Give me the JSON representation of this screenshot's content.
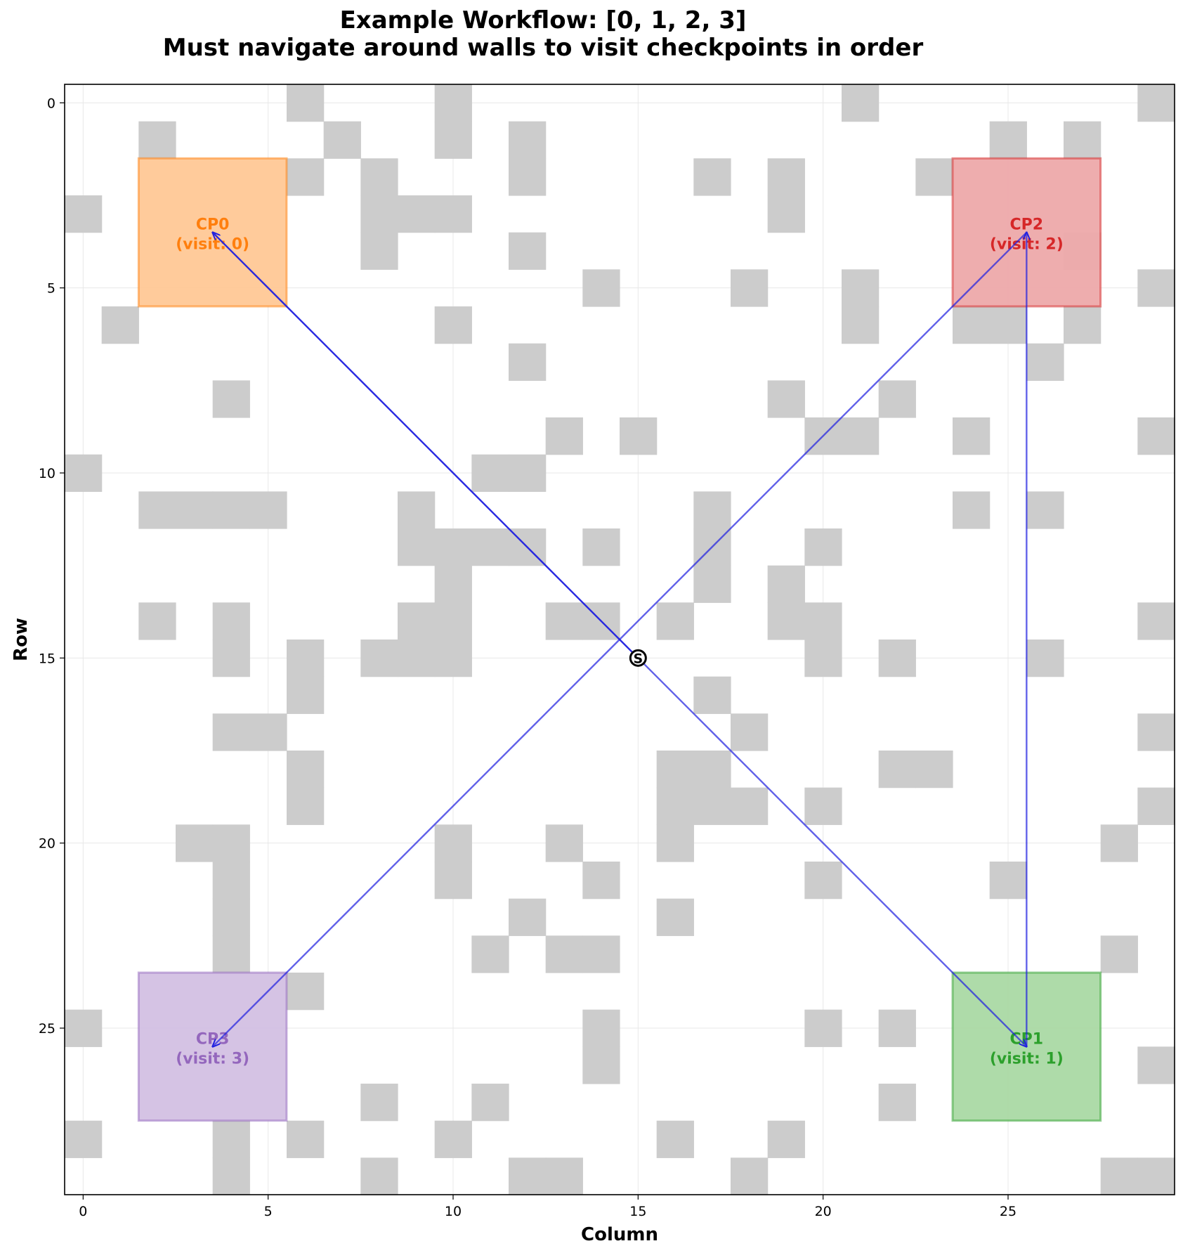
{
  "chart_data": {
    "type": "heatmap",
    "title": "Example Workflow: [0, 1, 2, 3]",
    "subtitle": "Must navigate around walls to visit checkpoints in order",
    "xlabel": "Column",
    "ylabel": "Row",
    "xlim": [
      -0.5,
      29.5
    ],
    "ylim": [
      29.5,
      -0.5
    ],
    "xticks": [
      "0",
      "5",
      "10",
      "15",
      "20",
      "25"
    ],
    "yticks": [
      "0",
      "5",
      "10",
      "15",
      "20",
      "25"
    ],
    "grid": true,
    "wall_color": "#cccccc",
    "path_color": "#2020e0",
    "walls": [
      [
        0,
        6
      ],
      [
        0,
        10
      ],
      [
        0,
        21
      ],
      [
        0,
        29
      ],
      [
        1,
        2
      ],
      [
        1,
        7
      ],
      [
        1,
        10
      ],
      [
        1,
        12
      ],
      [
        1,
        25
      ],
      [
        1,
        27
      ],
      [
        2,
        6
      ],
      [
        2,
        8
      ],
      [
        2,
        12
      ],
      [
        2,
        17
      ],
      [
        2,
        19
      ],
      [
        2,
        23
      ],
      [
        3,
        0
      ],
      [
        3,
        8
      ],
      [
        3,
        9
      ],
      [
        3,
        10
      ],
      [
        3,
        19
      ],
      [
        4,
        8
      ],
      [
        4,
        12
      ],
      [
        4,
        27
      ],
      [
        5,
        14
      ],
      [
        5,
        18
      ],
      [
        5,
        21
      ],
      [
        5,
        29
      ],
      [
        6,
        1
      ],
      [
        6,
        10
      ],
      [
        6,
        21
      ],
      [
        6,
        24
      ],
      [
        6,
        25
      ],
      [
        6,
        27
      ],
      [
        7,
        12
      ],
      [
        7,
        26
      ],
      [
        8,
        4
      ],
      [
        8,
        19
      ],
      [
        8,
        22
      ],
      [
        9,
        13
      ],
      [
        9,
        15
      ],
      [
        9,
        20
      ],
      [
        9,
        21
      ],
      [
        9,
        24
      ],
      [
        9,
        29
      ],
      [
        10,
        0
      ],
      [
        10,
        11
      ],
      [
        10,
        12
      ],
      [
        11,
        2
      ],
      [
        11,
        3
      ],
      [
        11,
        4
      ],
      [
        11,
        5
      ],
      [
        11,
        9
      ],
      [
        11,
        17
      ],
      [
        11,
        24
      ],
      [
        11,
        26
      ],
      [
        12,
        9
      ],
      [
        12,
        10
      ],
      [
        12,
        11
      ],
      [
        12,
        12
      ],
      [
        12,
        14
      ],
      [
        12,
        17
      ],
      [
        12,
        20
      ],
      [
        13,
        10
      ],
      [
        13,
        17
      ],
      [
        13,
        19
      ],
      [
        14,
        2
      ],
      [
        14,
        4
      ],
      [
        14,
        9
      ],
      [
        14,
        10
      ],
      [
        14,
        13
      ],
      [
        14,
        14
      ],
      [
        14,
        16
      ],
      [
        14,
        19
      ],
      [
        14,
        20
      ],
      [
        14,
        29
      ],
      [
        15,
        4
      ],
      [
        15,
        6
      ],
      [
        15,
        8
      ],
      [
        15,
        9
      ],
      [
        15,
        10
      ],
      [
        15,
        20
      ],
      [
        15,
        22
      ],
      [
        15,
        26
      ],
      [
        16,
        6
      ],
      [
        16,
        17
      ],
      [
        17,
        4
      ],
      [
        17,
        5
      ],
      [
        17,
        18
      ],
      [
        17,
        29
      ],
      [
        18,
        6
      ],
      [
        18,
        16
      ],
      [
        18,
        17
      ],
      [
        18,
        22
      ],
      [
        18,
        23
      ],
      [
        19,
        6
      ],
      [
        19,
        16
      ],
      [
        19,
        17
      ],
      [
        19,
        18
      ],
      [
        19,
        20
      ],
      [
        19,
        29
      ],
      [
        20,
        3
      ],
      [
        20,
        4
      ],
      [
        20,
        10
      ],
      [
        20,
        13
      ],
      [
        20,
        16
      ],
      [
        20,
        28
      ],
      [
        21,
        4
      ],
      [
        21,
        10
      ],
      [
        21,
        14
      ],
      [
        21,
        20
      ],
      [
        21,
        25
      ],
      [
        22,
        4
      ],
      [
        22,
        12
      ],
      [
        22,
        16
      ],
      [
        23,
        4
      ],
      [
        23,
        11
      ],
      [
        23,
        13
      ],
      [
        23,
        14
      ],
      [
        23,
        28
      ],
      [
        24,
        6
      ],
      [
        25,
        0
      ],
      [
        25,
        14
      ],
      [
        25,
        20
      ],
      [
        25,
        22
      ],
      [
        26,
        14
      ],
      [
        26,
        29
      ],
      [
        27,
        8
      ],
      [
        27,
        11
      ],
      [
        27,
        22
      ],
      [
        28,
        0
      ],
      [
        28,
        4
      ],
      [
        28,
        6
      ],
      [
        28,
        10
      ],
      [
        28,
        16
      ],
      [
        28,
        19
      ],
      [
        29,
        4
      ],
      [
        29,
        8
      ],
      [
        29,
        12
      ],
      [
        29,
        13
      ],
      [
        29,
        18
      ],
      [
        29,
        28
      ],
      [
        29,
        29
      ]
    ],
    "checkpoints": [
      {
        "label": "CP0",
        "visit": "(visit: 0)",
        "row_range": [
          2,
          5
        ],
        "col_range": [
          2,
          5
        ],
        "center": [
          3.5,
          3.5
        ],
        "color": "#ff7f0e",
        "fill": "#ffc896"
      },
      {
        "label": "CP1",
        "visit": "(visit: 1)",
        "row_range": [
          24,
          27
        ],
        "col_range": [
          24,
          27
        ],
        "center": [
          25.5,
          25.5
        ],
        "color": "#2ca02c",
        "fill": "#aad9a4"
      },
      {
        "label": "CP2",
        "visit": "(visit: 2)",
        "row_range": [
          2,
          5
        ],
        "col_range": [
          24,
          27
        ],
        "center": [
          3.5,
          25.5
        ],
        "color": "#d62728",
        "fill": "#eda9aa"
      },
      {
        "label": "CP3",
        "visit": "(visit: 3)",
        "row_range": [
          24,
          27
        ],
        "col_range": [
          2,
          5
        ],
        "center": [
          25.5,
          3.5
        ],
        "color": "#9467bd",
        "fill": "#d3c0e3"
      }
    ],
    "start": {
      "label": "S",
      "row": 15,
      "col": 15
    },
    "arrows": [
      {
        "from": [
          15,
          15
        ],
        "to": [
          3.5,
          3.5
        ]
      },
      {
        "from": [
          15,
          15
        ],
        "to": [
          25.5,
          25.5
        ]
      },
      {
        "from": [
          25.5,
          25.5
        ],
        "to": [
          3.5,
          25.5
        ]
      },
      {
        "from": [
          3.5,
          25.5
        ],
        "to": [
          25.5,
          3.5
        ]
      }
    ]
  }
}
